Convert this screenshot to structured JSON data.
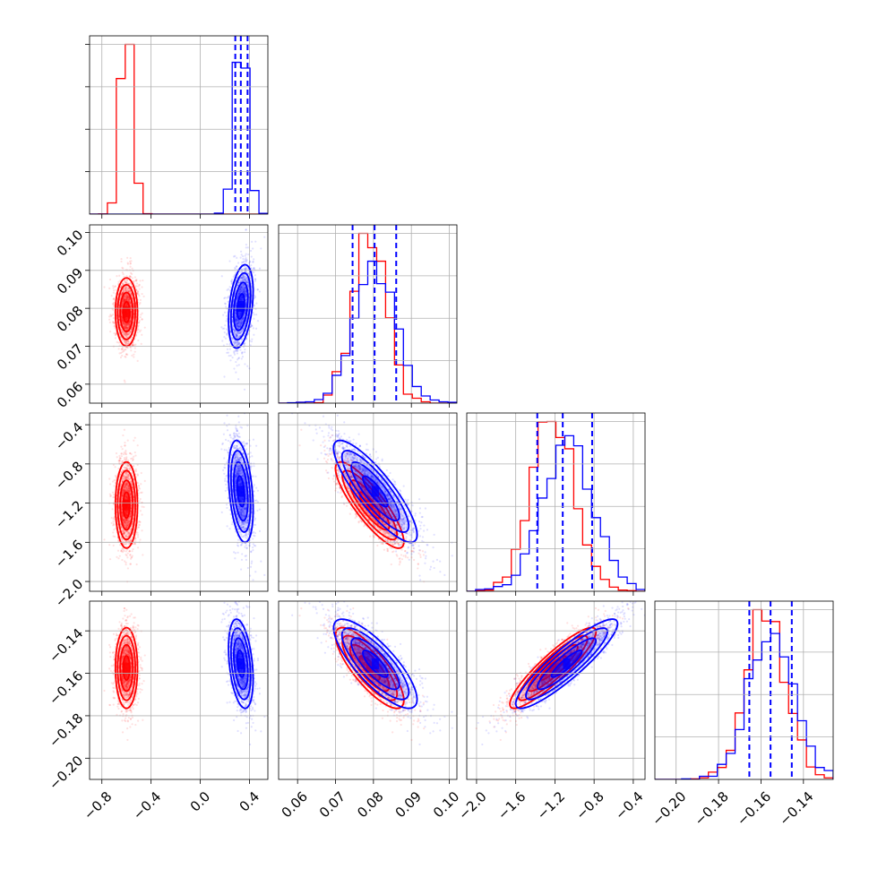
{
  "chart_data": {
    "type": "corner",
    "parameters": [
      {
        "lim": [
          -0.9,
          0.55
        ],
        "ticks": [
          -0.8,
          -0.4,
          0.0,
          0.4
        ],
        "labels": [
          "−0.8",
          "−0.4",
          "0.0",
          "0.4"
        ]
      },
      {
        "lim": [
          0.055,
          0.102
        ],
        "ticks": [
          0.06,
          0.07,
          0.08,
          0.09,
          0.1
        ],
        "labels": [
          "0.06",
          "0.07",
          "0.08",
          "0.09",
          "0.10"
        ]
      },
      {
        "lim": [
          -2.1,
          -0.28
        ],
        "ticks": [
          -2.0,
          -1.6,
          -1.2,
          -0.8,
          -0.4
        ],
        "labels": [
          "−2.0",
          "−1.6",
          "−1.2",
          "−0.8",
          "−0.4"
        ]
      },
      {
        "lim": [
          -0.21,
          -0.126
        ],
        "ticks": [
          -0.2,
          -0.18,
          -0.16,
          -0.14
        ],
        "labels": [
          "−0.20",
          "−0.18",
          "−0.16",
          "−0.14"
        ]
      }
    ],
    "grid": true,
    "series": [
      {
        "color": "#ff0000",
        "means": [
          -0.6,
          0.079,
          -1.22,
          -0.1575
        ],
        "sds": [
          0.045,
          0.0045,
          0.22,
          0.0095
        ],
        "corr": [
          [
            1,
            0,
            0,
            0
          ],
          [
            0,
            1,
            -0.85,
            -0.8
          ],
          [
            0,
            -0.85,
            1,
            0.9
          ],
          [
            0,
            -0.8,
            0.9,
            1
          ]
        ]
      },
      {
        "color": "#0000ff",
        "means": [
          0.33,
          0.0805,
          -1.08,
          -0.1555
        ],
        "sds": [
          0.05,
          0.0055,
          0.26,
          0.0105
        ],
        "corr": [
          [
            1,
            0.35,
            -0.35,
            -0.35
          ],
          [
            0.35,
            1,
            -0.85,
            -0.8
          ],
          [
            -0.35,
            -0.85,
            1,
            0.9
          ],
          [
            -0.35,
            -0.8,
            0.9,
            1
          ]
        ]
      }
    ],
    "quantile_lines": {
      "color": "#0000ff",
      "values": [
        [
          0.285,
          0.33,
          0.385
        ],
        [
          0.0745,
          0.0803,
          0.086
        ],
        [
          -1.38,
          -1.12,
          -0.82
        ],
        [
          -0.1655,
          -0.1555,
          -0.1455
        ]
      ]
    }
  }
}
